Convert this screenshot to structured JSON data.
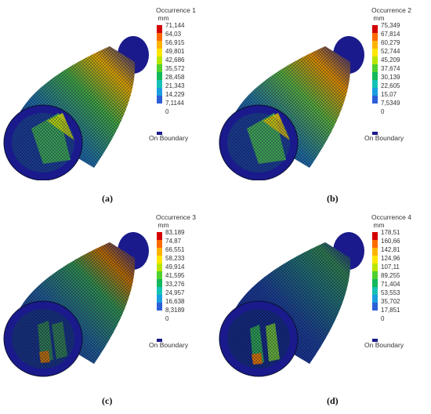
{
  "panels": [
    {
      "caption": "(a)",
      "legend": {
        "title": "Occurrence 1",
        "unit": "mm",
        "ticks": [
          "71,144",
          "64,03",
          "56,915",
          "49,801",
          "42,686",
          "35,572",
          "28,458",
          "21,343",
          "14,229",
          "7,1144",
          "0"
        ],
        "boundary_label": "On Boundary"
      }
    },
    {
      "caption": "(b)",
      "legend": {
        "title": "Occurrence 2",
        "unit": "mm",
        "ticks": [
          "75,349",
          "67,814",
          "60,279",
          "52,744",
          "45,209",
          "37,674",
          "30,139",
          "22,605",
          "15,07",
          "7,5349",
          "0"
        ],
        "boundary_label": "On Boundary"
      }
    },
    {
      "caption": "(c)",
      "legend": {
        "title": "Occurrence 3",
        "unit": "mm",
        "ticks": [
          "83,189",
          "74,87",
          "66,551",
          "58,233",
          "49,914",
          "41,595",
          "33,276",
          "24,957",
          "16,638",
          "8,3189",
          "0"
        ],
        "boundary_label": "On Boundary"
      }
    },
    {
      "caption": "(d)",
      "legend": {
        "title": "Occurrence 4",
        "unit": "mm",
        "ticks": [
          "178,51",
          "160,66",
          "142,81",
          "124,96",
          "107,11",
          "89,255",
          "71,404",
          "53,553",
          "35,702",
          "17,851",
          "0"
        ],
        "boundary_label": "On Boundary"
      }
    }
  ],
  "colors": {
    "scale": [
      "#d40000",
      "#ff6a00",
      "#ffb300",
      "#ffe600",
      "#b8e600",
      "#4fd12f",
      "#12b85a",
      "#15c2b5",
      "#1a9ee0",
      "#2b5fd8",
      "#1a1a8c"
    ],
    "boundary": "#1a1a8c",
    "mesh_dark": "#101a5a",
    "mesh_light": "#2a4aa8"
  }
}
